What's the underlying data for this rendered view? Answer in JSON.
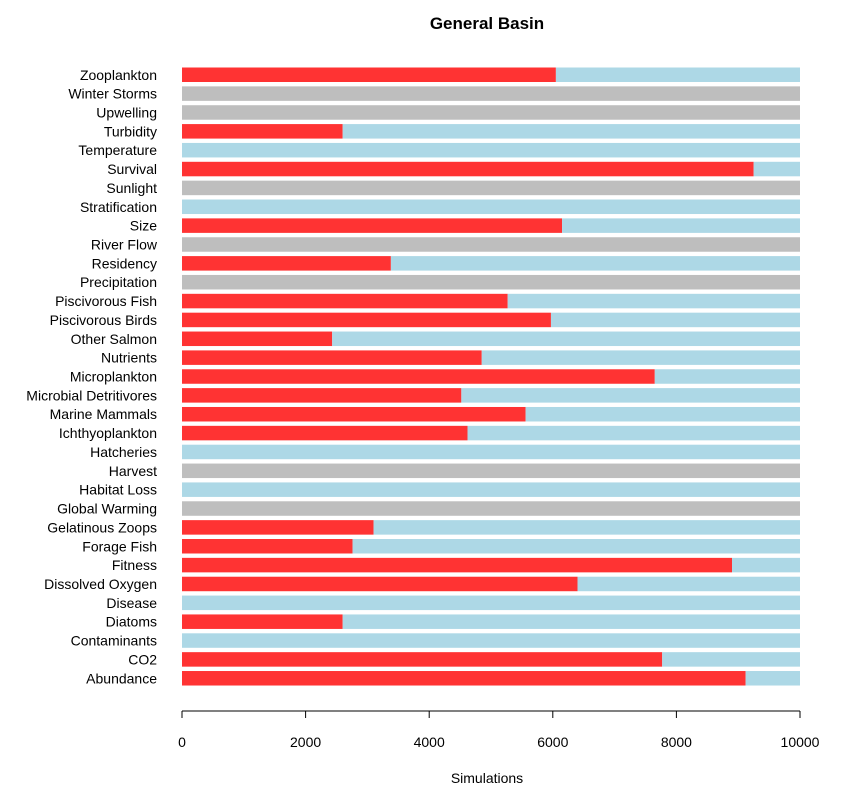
{
  "chart_data": {
    "type": "bar",
    "orientation": "horizontal",
    "stacked": true,
    "title": "General Basin",
    "xlabel": "Simulations",
    "ylabel": "",
    "xlim": [
      0,
      10000
    ],
    "xticks": [
      0,
      2000,
      4000,
      6000,
      8000,
      10000
    ],
    "grid": false,
    "legend": "none",
    "colors": {
      "red": "#ff3333",
      "lightblue": "#add8e6",
      "gray": "#bebebe"
    },
    "categories": [
      "Zooplankton",
      "Winter Storms",
      "Upwelling",
      "Turbidity",
      "Temperature",
      "Survival",
      "Sunlight",
      "Stratification",
      "Size",
      "River Flow",
      "Residency",
      "Precipitation",
      "Piscivorous Fish",
      "Piscivorous Birds",
      "Other Salmon",
      "Nutrients",
      "Microplankton",
      "Microbial Detritivores",
      "Marine Mammals",
      "Ichthyoplankton",
      "Hatcheries",
      "Harvest",
      "Habitat Loss",
      "Global Warming",
      "Gelatinous Zoops",
      "Forage Fish",
      "Fitness",
      "Dissolved Oxygen",
      "Disease",
      "Diatoms",
      "Contaminants",
      "CO2",
      "Abundance"
    ],
    "series": [
      {
        "color": "red",
        "values": [
          6050,
          0,
          0,
          2600,
          0,
          9250,
          0,
          0,
          6150,
          0,
          3380,
          0,
          5270,
          5970,
          2430,
          4850,
          7650,
          4520,
          5560,
          4620,
          0,
          0,
          0,
          0,
          3100,
          2760,
          8900,
          6400,
          0,
          2600,
          0,
          7770,
          9120
        ]
      },
      {
        "color": "lightblue",
        "values": [
          3950,
          0,
          0,
          7400,
          10000,
          750,
          0,
          10000,
          3850,
          0,
          6620,
          0,
          4730,
          4030,
          7570,
          5150,
          2350,
          5480,
          4440,
          5380,
          10000,
          0,
          10000,
          0,
          6900,
          7240,
          1100,
          3600,
          10000,
          7400,
          10000,
          2230,
          880
        ]
      },
      {
        "color": "gray",
        "values": [
          0,
          10000,
          10000,
          0,
          0,
          0,
          10000,
          0,
          0,
          10000,
          0,
          10000,
          0,
          0,
          0,
          0,
          0,
          0,
          0,
          0,
          0,
          10000,
          0,
          10000,
          0,
          0,
          0,
          0,
          0,
          0,
          0,
          0,
          0
        ]
      }
    ]
  }
}
